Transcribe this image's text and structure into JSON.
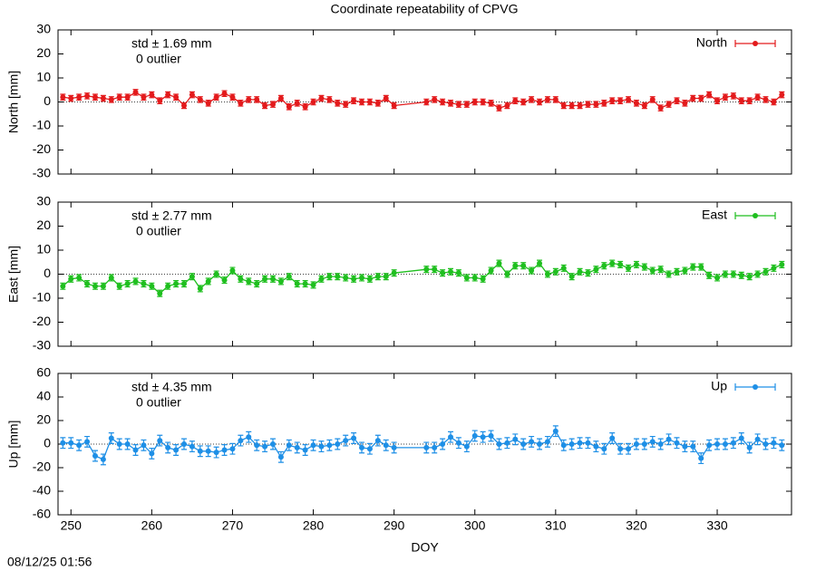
{
  "title": "Coordinate repeatability of CPVG",
  "timestamp": "08/12/25 01:56",
  "chart_data": [
    {
      "type": "line",
      "ylabel": "North [mm]",
      "annotations": [
        "std ± 1.69 mm",
        "0 outlier"
      ],
      "x": [
        249,
        250,
        251,
        252,
        253,
        254,
        255,
        256,
        257,
        258,
        259,
        260,
        261,
        262,
        263,
        264,
        265,
        266,
        267,
        268,
        269,
        270,
        271,
        272,
        273,
        274,
        275,
        276,
        277,
        278,
        279,
        280,
        281,
        282,
        283,
        284,
        285,
        286,
        287,
        288,
        289,
        290,
        294,
        295,
        296,
        297,
        298,
        299,
        300,
        301,
        302,
        303,
        304,
        305,
        306,
        307,
        308,
        309,
        310,
        311,
        312,
        313,
        314,
        315,
        316,
        317,
        318,
        319,
        320,
        321,
        322,
        323,
        324,
        325,
        326,
        327,
        328,
        329,
        330,
        331,
        332,
        333,
        334,
        335,
        336,
        337,
        338
      ],
      "series": [
        {
          "name": "North",
          "color": "#e31a1c",
          "error": 1.2,
          "values": [
            2,
            1.5,
            2,
            2.5,
            2,
            1.5,
            1,
            2,
            2,
            4,
            2,
            3,
            0.5,
            3,
            2,
            -1.5,
            3,
            1,
            -0.5,
            2,
            3.5,
            2,
            -0.5,
            1,
            1,
            -1.5,
            -1,
            1.5,
            -2,
            -0.5,
            -2,
            0,
            1.5,
            1,
            -0.5,
            -1,
            0.5,
            0,
            0,
            -0.5,
            1.5,
            -1.5,
            0,
            1,
            0,
            -0.5,
            -1,
            -1,
            0,
            0,
            -0.5,
            -2.5,
            -1.5,
            0.5,
            0,
            1,
            0,
            1,
            1,
            -1.5,
            -1.5,
            -1.5,
            -1,
            -1,
            -0.5,
            0.5,
            0.5,
            1,
            -0.5,
            -1.5,
            1,
            -2.5,
            -1,
            0.5,
            -0.5,
            1.5,
            1.5,
            3,
            0.5,
            2,
            2.5,
            0.5,
            0.5,
            2,
            1,
            0,
            3
          ]
        }
      ],
      "xlim": [
        248.4,
        339.2
      ],
      "xticks": [
        250,
        260,
        270,
        280,
        290,
        300,
        310,
        320,
        330
      ],
      "ylim": [
        -30,
        30
      ],
      "yticks": [
        -30,
        -20,
        -10,
        0,
        10,
        20,
        30
      ]
    },
    {
      "type": "line",
      "ylabel": "East [mm]",
      "annotations": [
        "std ± 2.77 mm",
        "0 outlier"
      ],
      "x": [
        249,
        250,
        251,
        252,
        253,
        254,
        255,
        256,
        257,
        258,
        259,
        260,
        261,
        262,
        263,
        264,
        265,
        266,
        267,
        268,
        269,
        270,
        271,
        272,
        273,
        274,
        275,
        276,
        277,
        278,
        279,
        280,
        281,
        282,
        283,
        284,
        285,
        286,
        287,
        288,
        289,
        290,
        294,
        295,
        296,
        297,
        298,
        299,
        300,
        301,
        302,
        303,
        304,
        305,
        306,
        307,
        308,
        309,
        310,
        311,
        312,
        313,
        314,
        315,
        316,
        317,
        318,
        319,
        320,
        321,
        322,
        323,
        324,
        325,
        326,
        327,
        328,
        329,
        330,
        331,
        332,
        333,
        334,
        335,
        336,
        337,
        338
      ],
      "series": [
        {
          "name": "East",
          "color": "#1fbf1f",
          "error": 1.3,
          "values": [
            -5,
            -2,
            -1.5,
            -4,
            -5,
            -5,
            -1.5,
            -5,
            -4,
            -3,
            -4,
            -5,
            -8,
            -5,
            -4,
            -4,
            -1,
            -6,
            -3,
            0,
            -2.5,
            1.5,
            -2,
            -3,
            -4,
            -2,
            -2,
            -3,
            -1,
            -4,
            -4,
            -4.5,
            -2,
            -1,
            -1,
            -1.5,
            -2,
            -1.5,
            -2,
            -1,
            -1,
            0.5,
            2,
            2,
            0.5,
            1,
            0.5,
            -1.5,
            -1.5,
            -2,
            1.5,
            4.5,
            0,
            3.5,
            3.5,
            1.5,
            4.5,
            0,
            1,
            2.5,
            -1,
            1,
            0.5,
            2,
            3.5,
            4.5,
            4,
            2.5,
            4,
            3,
            1.5,
            2,
            0,
            1,
            1.5,
            3,
            3,
            -0.5,
            -1.5,
            0,
            0,
            -0.5,
            -1,
            0,
            1,
            2.5,
            4
          ]
        }
      ],
      "xlim": [
        248.4,
        339.2
      ],
      "xticks": [
        250,
        260,
        270,
        280,
        290,
        300,
        310,
        320,
        330
      ],
      "ylim": [
        -30,
        30
      ],
      "yticks": [
        -30,
        -20,
        -10,
        0,
        10,
        20,
        30
      ]
    },
    {
      "type": "line",
      "ylabel": "Up [mm]",
      "xlabel": "DOY",
      "annotations": [
        "std ± 4.35 mm",
        "0 outlier"
      ],
      "x": [
        249,
        250,
        251,
        252,
        253,
        254,
        255,
        256,
        257,
        258,
        259,
        260,
        261,
        262,
        263,
        264,
        265,
        266,
        267,
        268,
        269,
        270,
        271,
        272,
        273,
        274,
        275,
        276,
        277,
        278,
        279,
        280,
        281,
        282,
        283,
        284,
        285,
        286,
        287,
        288,
        289,
        290,
        294,
        295,
        296,
        297,
        298,
        299,
        300,
        301,
        302,
        303,
        304,
        305,
        306,
        307,
        308,
        309,
        310,
        311,
        312,
        313,
        314,
        315,
        316,
        317,
        318,
        319,
        320,
        321,
        322,
        323,
        324,
        325,
        326,
        327,
        328,
        329,
        330,
        331,
        332,
        333,
        334,
        335,
        336,
        337,
        338
      ],
      "series": [
        {
          "name": "Up",
          "color": "#1e8fe6",
          "error": 4.5,
          "values": [
            1,
            1,
            -1,
            2,
            -10,
            -13,
            5,
            0,
            0,
            -5,
            -1,
            -8,
            3,
            -3,
            -5,
            0,
            -2,
            -6,
            -6,
            -7,
            -5,
            -4,
            3,
            6,
            -1,
            -2,
            0,
            -11,
            -1,
            -3,
            -5,
            -1,
            -2,
            -1,
            0,
            3,
            5,
            -3,
            -4,
            3,
            -1,
            -3,
            -3,
            -3,
            0,
            6,
            1,
            -2,
            7,
            6,
            7,
            0,
            1,
            4,
            0,
            2,
            0,
            2,
            11,
            -1,
            0,
            1,
            1,
            -2,
            -4,
            5,
            -4,
            -4,
            0,
            0,
            2,
            0,
            4,
            1,
            -2,
            -2,
            -12,
            -1,
            0,
            0,
            1,
            5,
            -3,
            4,
            0,
            1,
            -1
          ]
        }
      ],
      "xlim": [
        248.4,
        339.2
      ],
      "xticks": [
        250,
        260,
        270,
        280,
        290,
        300,
        310,
        320,
        330
      ],
      "ylim": [
        -60,
        60
      ],
      "yticks": [
        -60,
        -40,
        -20,
        0,
        20,
        40,
        60
      ]
    }
  ]
}
